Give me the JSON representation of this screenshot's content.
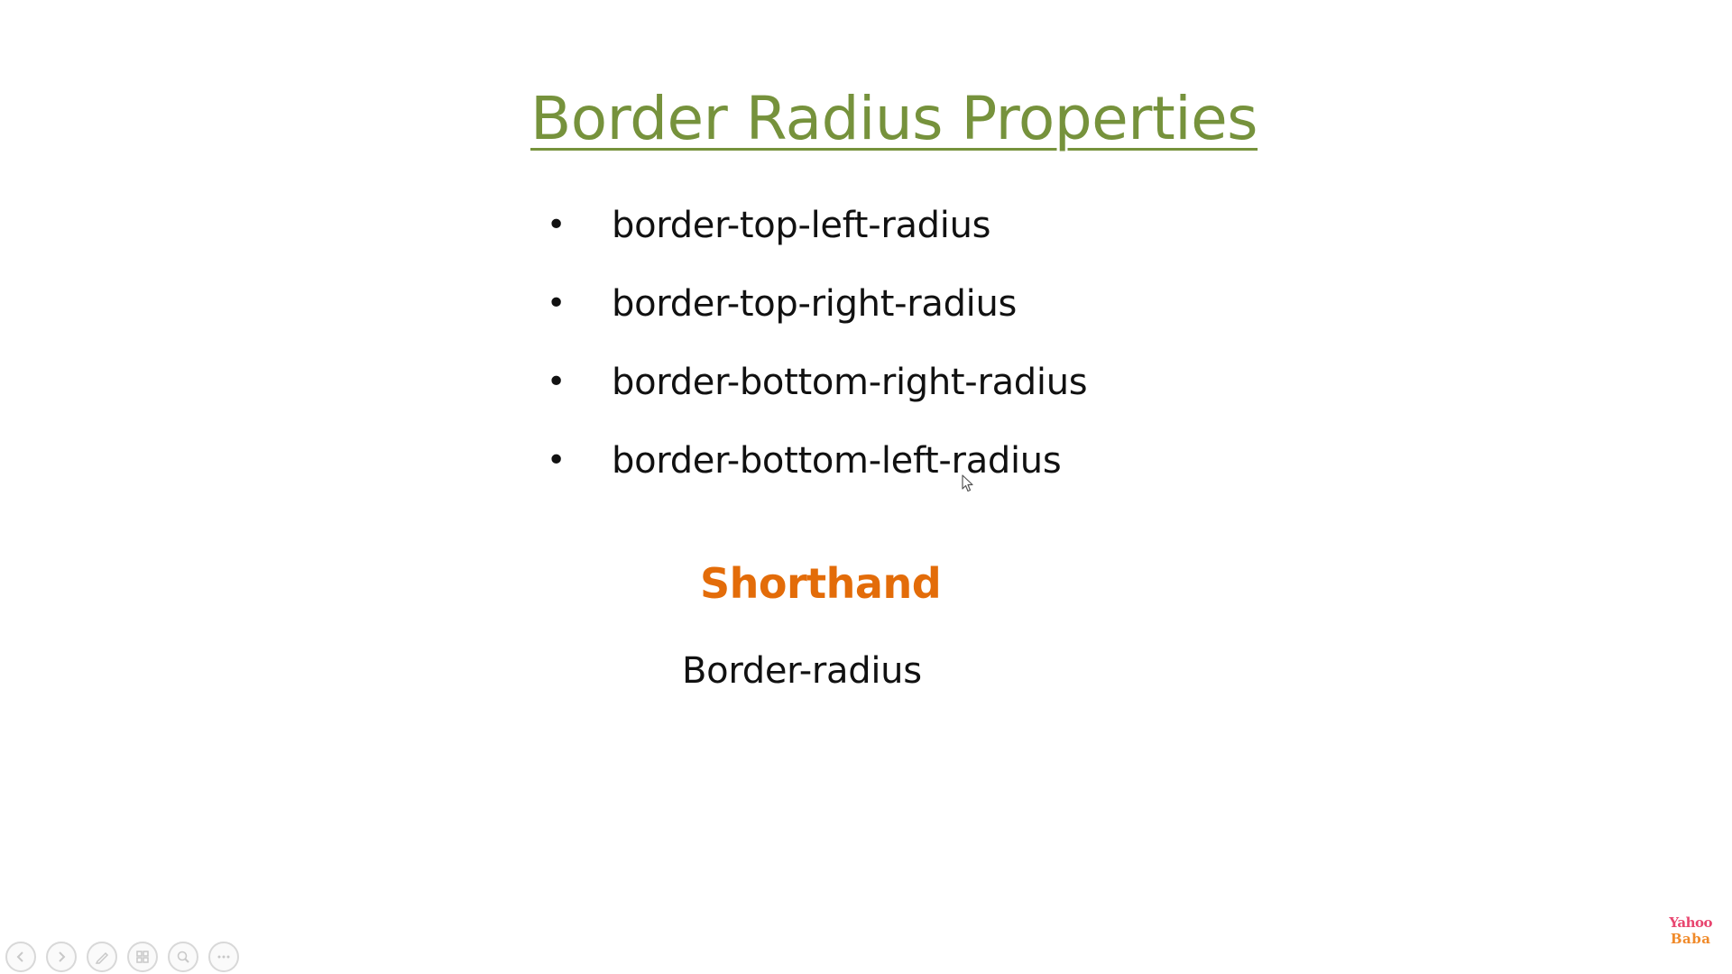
{
  "slide": {
    "title": "Border Radius Properties",
    "bullets": [
      {
        "marker": "•",
        "text": "border-top-left-radius"
      },
      {
        "marker": "•",
        "text": "border-top-right-radius"
      },
      {
        "marker": "•",
        "text": "border-bottom-right-radius"
      },
      {
        "marker": "•",
        "text": "border-bottom-left-radius"
      }
    ],
    "shorthand_heading": "Shorthand",
    "shorthand_value": "Border-radius"
  },
  "logo": {
    "line1": "Yahoo",
    "line2": "Baba"
  },
  "controls": [
    {
      "icon": "previous-icon"
    },
    {
      "icon": "next-icon"
    },
    {
      "icon": "pen-icon"
    },
    {
      "icon": "slides-icon"
    },
    {
      "icon": "zoom-icon"
    },
    {
      "icon": "more-icon"
    }
  ],
  "colors": {
    "title": "#76923c",
    "shorthand": "#e36c09",
    "body_text": "#111111",
    "background": "#ffffff"
  }
}
